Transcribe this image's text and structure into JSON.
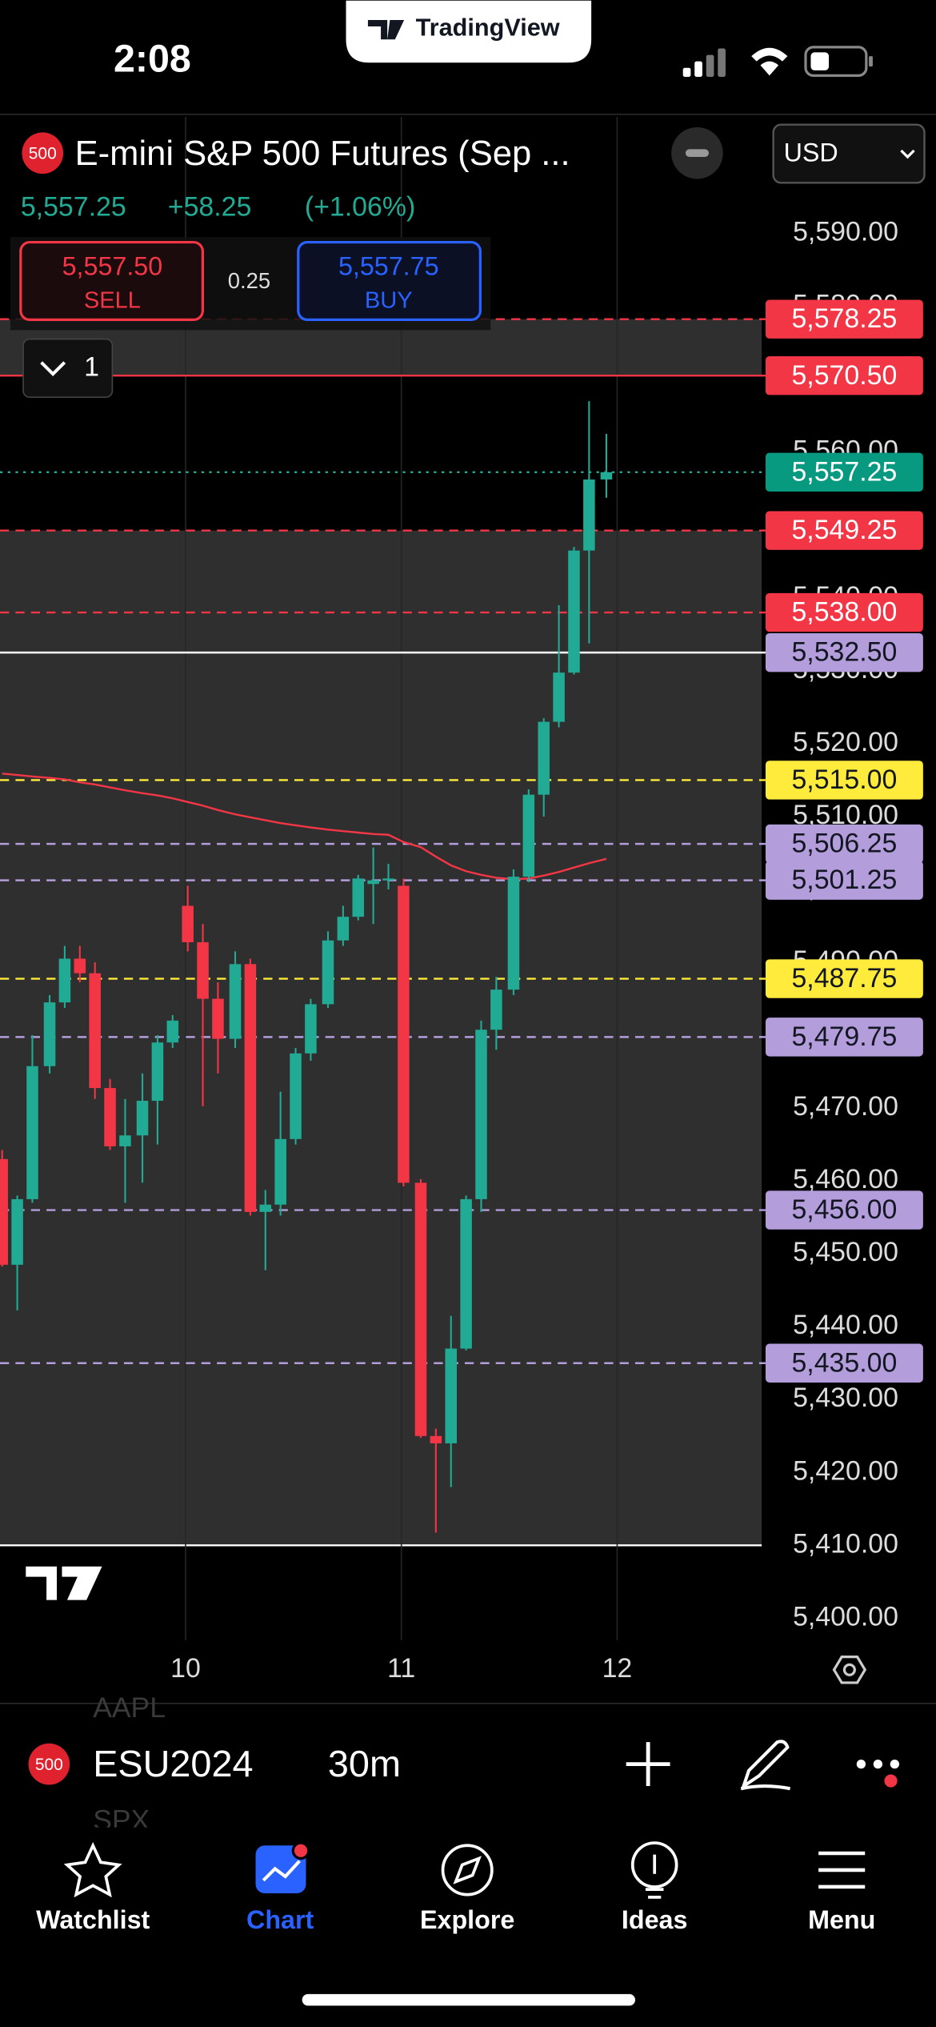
{
  "status_bar": {
    "time": "2:08",
    "app": "TradingView"
  },
  "header": {
    "symbol_badge": "500",
    "title": "E-mini S&P 500 Futures (Sep ...",
    "currency": "USD",
    "last": "5,557.25",
    "change": "+58.25",
    "change_pct": "(+1.06%)"
  },
  "trade": {
    "sell_price": "5,557.50",
    "sell_label": "SELL",
    "spread": "0.25",
    "buy_price": "5,557.75",
    "buy_label": "BUY",
    "quantity": "1"
  },
  "chart_data": {
    "type": "candlestick",
    "x": [
      9.15,
      9.22,
      9.29,
      9.37,
      9.44,
      9.51,
      9.58,
      9.65,
      9.72,
      9.8,
      9.87,
      9.94,
      10.01,
      10.08,
      10.15,
      10.23,
      10.3,
      10.37,
      10.44,
      10.51,
      10.58,
      10.66,
      10.73,
      10.8,
      10.87,
      10.94,
      11.01,
      11.09,
      11.16,
      11.23,
      11.3,
      11.37,
      11.44,
      11.52,
      11.59,
      11.66,
      11.73,
      11.8,
      11.87,
      11.95
    ],
    "open": [
      5463.0,
      5448.5,
      5457.5,
      5475.75,
      5484.5,
      5490.5,
      5488.5,
      5472.75,
      5464.75,
      5466.25,
      5471.0,
      5479.0,
      5497.75,
      5492.75,
      5485.0,
      5479.5,
      5489.75,
      5455.75,
      5456.75,
      5465.75,
      5477.5,
      5484.25,
      5493.0,
      5496.25,
      5500.75,
      5501.25,
      5500.5,
      5459.75,
      5425.0,
      5424.0,
      5437.0,
      5457.5,
      5480.75,
      5486.25,
      5501.75,
      5513.0,
      5523.0,
      5529.75,
      5546.5,
      5556.25
    ],
    "high": [
      5464.25,
      5458.0,
      5480.0,
      5485.5,
      5492.25,
      5492.25,
      5490.0,
      5474.0,
      5471.25,
      5474.75,
      5480.0,
      5482.75,
      5500.5,
      5495.25,
      5487.25,
      5491.5,
      5490.5,
      5458.75,
      5472.25,
      5478.25,
      5485.0,
      5494.25,
      5497.75,
      5502.0,
      5505.75,
      5503.5,
      5501.5,
      5460.25,
      5426.0,
      5441.5,
      5458.0,
      5482.0,
      5488.0,
      5502.75,
      5513.75,
      5523.5,
      5539.0,
      5547.0,
      5567.0,
      5562.5
    ],
    "low": [
      5448.25,
      5442.25,
      5457.0,
      5474.75,
      5483.75,
      5487.25,
      5471.25,
      5464.25,
      5457.0,
      5459.75,
      5465.0,
      5478.25,
      5491.5,
      5470.25,
      5474.75,
      5478.25,
      5455.25,
      5447.75,
      5455.25,
      5465.0,
      5476.5,
      5483.75,
      5492.25,
      5495.75,
      5495.25,
      5500.0,
      5459.25,
      5424.75,
      5411.75,
      5418.0,
      5436.75,
      5455.75,
      5478.0,
      5485.5,
      5501.0,
      5510.0,
      5522.25,
      5529.5,
      5533.75,
      5553.75
    ],
    "close": [
      5448.5,
      5457.5,
      5475.75,
      5484.5,
      5490.5,
      5488.5,
      5472.75,
      5464.75,
      5466.25,
      5471.0,
      5479.0,
      5482.0,
      5492.75,
      5485.0,
      5479.5,
      5489.75,
      5455.75,
      5456.75,
      5465.75,
      5477.5,
      5484.25,
      5493.0,
      5496.25,
      5501.5,
      5501.25,
      5501.5,
      5459.75,
      5425.0,
      5424.0,
      5437.0,
      5457.5,
      5480.75,
      5486.25,
      5501.75,
      5513.0,
      5523.0,
      5529.75,
      5546.5,
      5556.25,
      5557.25
    ],
    "up_color": "#22ab94",
    "down_color": "#f23645",
    "ma": {
      "color": "#f23645",
      "values": [
        5515.9,
        5515.7,
        5515.5,
        5515.3,
        5515.1,
        5514.7,
        5514.4,
        5514.0,
        5513.6,
        5513.2,
        5512.9,
        5512.5,
        5512.0,
        5511.5,
        5510.9,
        5510.3,
        5509.9,
        5509.5,
        5509.1,
        5508.8,
        5508.5,
        5508.2,
        5508.0,
        5507.8,
        5507.6,
        5507.5,
        5506.5,
        5505.8,
        5504.5,
        5503.3,
        5502.5,
        5502.0,
        5501.6,
        5501.4,
        5501.5,
        5501.9,
        5502.4,
        5503.0,
        5503.6,
        5504.2
      ]
    },
    "xlim": [
      9.14,
      12.67
    ],
    "xticks": [
      10,
      11,
      12
    ],
    "ylim": [
      5397,
      5606
    ],
    "yticks": [
      {
        "value": 5400,
        "label": "5,400.00"
      },
      {
        "value": 5410,
        "label": "5,410.00"
      },
      {
        "value": 5420,
        "label": "5,420.00"
      },
      {
        "value": 5430,
        "label": "5,430.00"
      },
      {
        "value": 5440,
        "label": "5,440.00"
      },
      {
        "value": 5450,
        "label": "5,450.00"
      },
      {
        "value": 5460,
        "label": "5,460.00"
      },
      {
        "value": 5470,
        "label": "5,470.00"
      },
      {
        "value": 5480,
        "label": "5,480.00"
      },
      {
        "value": 5490,
        "label": "5,490.00"
      },
      {
        "value": 5500,
        "label": "5,500.00"
      },
      {
        "value": 5510,
        "label": "5,510.00"
      },
      {
        "value": 5520,
        "label": "5,520.00"
      },
      {
        "value": 5530,
        "label": "5,530.00"
      },
      {
        "value": 5540,
        "label": "5,540.00"
      },
      {
        "value": 5550,
        "label": "5,550.00"
      },
      {
        "value": 5560,
        "label": "5,560.00"
      },
      {
        "value": 5570,
        "label": "5,570.00"
      },
      {
        "value": 5580,
        "label": "5,580.00"
      },
      {
        "value": 5590,
        "label": "5,590.00"
      }
    ],
    "grid": "x",
    "zones": [
      [
        5570.5,
        5578.25
      ],
      [
        5532.5,
        5549.25
      ],
      [
        5410,
        5532.5
      ]
    ],
    "zone_color": "#2f2f2f",
    "price_lines": [
      {
        "value": 5578.25,
        "label": "5,578.25",
        "color": "#f23645",
        "style": "dashed",
        "tag": "#f23645",
        "tag_text": "#ffffff"
      },
      {
        "value": 5570.5,
        "label": "5,570.50",
        "color": "#f23645",
        "style": "solid",
        "tag": "#f23645",
        "tag_text": "#ffffff"
      },
      {
        "value": 5557.25,
        "label": "5,557.25",
        "color": "#22ab94",
        "style": "dotted",
        "tag": "#089981",
        "tag_text": "#ffffff"
      },
      {
        "value": 5549.25,
        "label": "5,549.25",
        "color": "#f23645",
        "style": "dashed",
        "tag": "#f23645",
        "tag_text": "#ffffff"
      },
      {
        "value": 5538,
        "label": "5,538.00",
        "color": "#f23645",
        "style": "dashed",
        "tag": "#f23645",
        "tag_text": "#ffffff"
      },
      {
        "value": 5532.5,
        "label": "5,532.50",
        "color": "#ffffff",
        "style": "solid",
        "tag": "#b39ddb",
        "tag_text": "#131722"
      },
      {
        "value": 5515,
        "label": "5,515.00",
        "color": "#ffeb3b",
        "style": "dashed",
        "tag": "#ffeb3b",
        "tag_text": "#131722"
      },
      {
        "value": 5506.25,
        "label": "5,506.25",
        "color": "#b39ddb",
        "style": "dashed",
        "tag": "#b39ddb",
        "tag_text": "#131722"
      },
      {
        "value": 5501.25,
        "label": "5,501.25",
        "color": "#b39ddb",
        "style": "dashed",
        "tag": "#b39ddb",
        "tag_text": "#131722"
      },
      {
        "value": 5487.75,
        "label": "5,487.75",
        "color": "#ffeb3b",
        "style": "dashed",
        "tag": "#ffeb3b",
        "tag_text": "#131722"
      },
      {
        "value": 5479.75,
        "label": "5,479.75",
        "color": "#b39ddb",
        "style": "dashed",
        "tag": "#b39ddb",
        "tag_text": "#131722"
      },
      {
        "value": 5456,
        "label": "5,456.00",
        "color": "#b39ddb",
        "style": "dashed",
        "tag": "#b39ddb",
        "tag_text": "#131722"
      },
      {
        "value": 5435,
        "label": "5,435.00",
        "color": "#b39ddb",
        "style": "dashed",
        "tag": "#b39ddb",
        "tag_text": "#131722"
      }
    ]
  },
  "toolbar": {
    "badge": "500",
    "symbol": "ESU2024",
    "interval": "30m",
    "ghost_above": "AAPL",
    "ghost_below": "SPX"
  },
  "tabs": [
    {
      "label": "Watchlist"
    },
    {
      "label": "Chart"
    },
    {
      "label": "Explore"
    },
    {
      "label": "Ideas"
    },
    {
      "label": "Menu"
    }
  ],
  "active_tab": 1
}
